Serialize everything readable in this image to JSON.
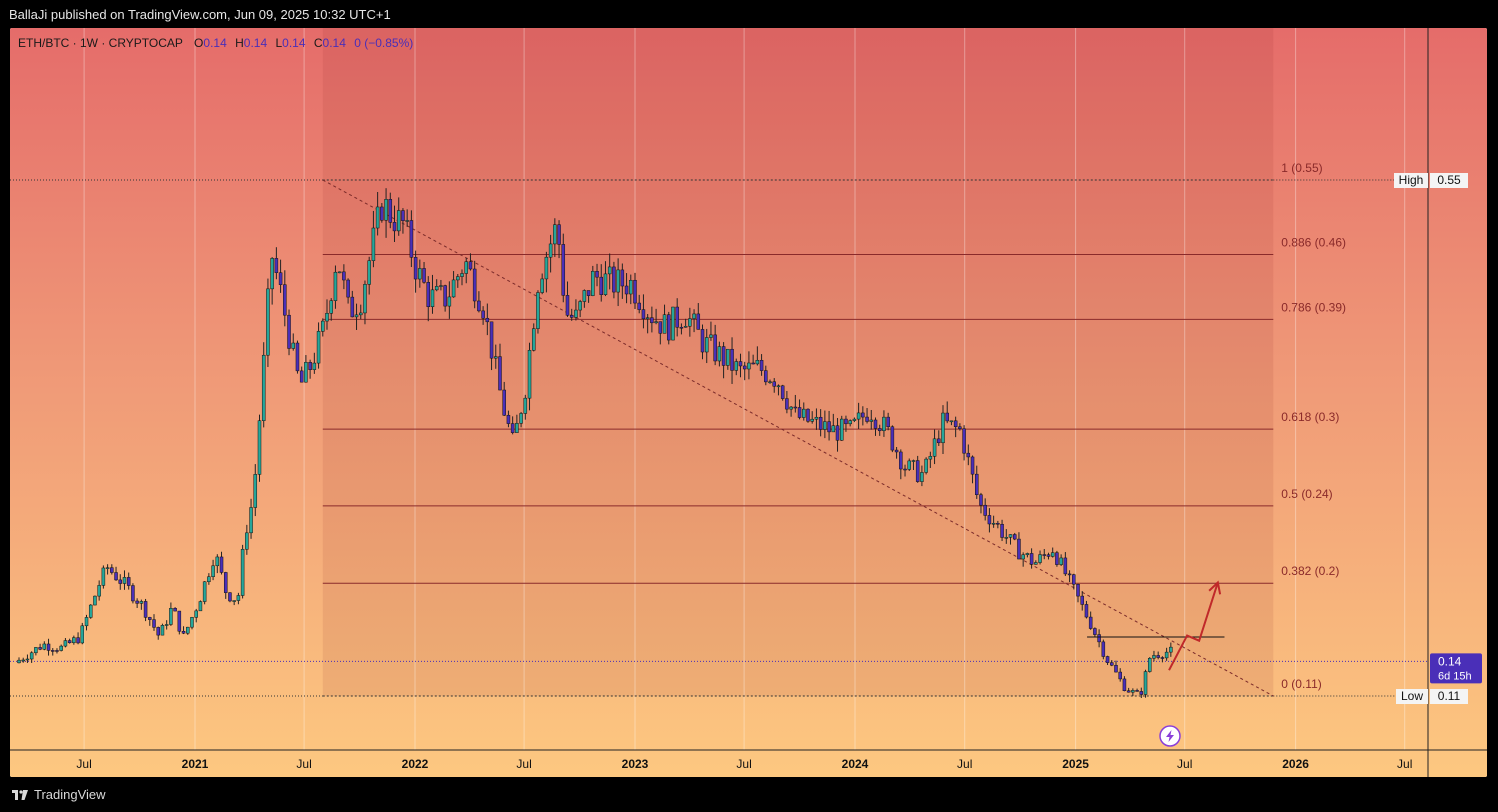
{
  "header": {
    "publish": "BallaJi published on TradingView.com, Jun 09, 2025 10:32 UTC+1"
  },
  "footer": {
    "brand": "TradingView"
  },
  "chart_data": {
    "type": "candlestick",
    "symbol": "ETH/BTC · 1W · CRYPTOCAP",
    "ohlc": {
      "o_label": "O",
      "o": "0.14",
      "h_label": "H",
      "h": "0.14",
      "l_label": "L",
      "l": "0.14",
      "c_label": "C",
      "c": "0.14",
      "change": "0 (−0.85%)"
    },
    "x_ticks": [
      {
        "label": "Jul",
        "date": "2020-07-01",
        "bold": false
      },
      {
        "label": "2021",
        "date": "2021-01-01",
        "bold": true
      },
      {
        "label": "Jul",
        "date": "2021-07-01",
        "bold": false
      },
      {
        "label": "2022",
        "date": "2022-01-01",
        "bold": true
      },
      {
        "label": "Jul",
        "date": "2022-07-01",
        "bold": false
      },
      {
        "label": "2023",
        "date": "2023-01-01",
        "bold": true
      },
      {
        "label": "Jul",
        "date": "2023-07-01",
        "bold": false
      },
      {
        "label": "2024",
        "date": "2024-01-01",
        "bold": true
      },
      {
        "label": "Jul",
        "date": "2024-07-01",
        "bold": false
      },
      {
        "label": "2025",
        "date": "2025-01-01",
        "bold": true
      },
      {
        "label": "Jul",
        "date": "2025-07-01",
        "bold": false
      },
      {
        "label": "2026",
        "date": "2026-01-01",
        "bold": true
      },
      {
        "label": "Jul",
        "date": "2026-07-01",
        "bold": false
      }
    ],
    "series": [
      {
        "date": "2020-03-15",
        "value": 0.0225
      },
      {
        "date": "2020-05-01",
        "value": 0.025
      },
      {
        "date": "2020-06-01",
        "value": 0.0245
      },
      {
        "date": "2020-07-01",
        "value": 0.026
      },
      {
        "date": "2020-08-01",
        "value": 0.033
      },
      {
        "date": "2020-08-15",
        "value": 0.0355
      },
      {
        "date": "2020-09-15",
        "value": 0.033
      },
      {
        "date": "2020-10-15",
        "value": 0.03
      },
      {
        "date": "2020-11-10",
        "value": 0.026
      },
      {
        "date": "2020-12-01",
        "value": 0.03
      },
      {
        "date": "2020-12-20",
        "value": 0.026
      },
      {
        "date": "2021-01-15",
        "value": 0.031
      },
      {
        "date": "2021-02-10",
        "value": 0.0375
      },
      {
        "date": "2021-03-01",
        "value": 0.032
      },
      {
        "date": "2021-03-20",
        "value": 0.031
      },
      {
        "date": "2021-04-01",
        "value": 0.04
      },
      {
        "date": "2021-04-15",
        "value": 0.045
      },
      {
        "date": "2021-05-01",
        "value": 0.062
      },
      {
        "date": "2021-05-15",
        "value": 0.078
      },
      {
        "date": "2021-06-01",
        "value": 0.072
      },
      {
        "date": "2021-06-20",
        "value": 0.064
      },
      {
        "date": "2021-07-01",
        "value": 0.06
      },
      {
        "date": "2021-07-20",
        "value": 0.063
      },
      {
        "date": "2021-08-10",
        "value": 0.068
      },
      {
        "date": "2021-09-01",
        "value": 0.078
      },
      {
        "date": "2021-09-20",
        "value": 0.07
      },
      {
        "date": "2021-10-10",
        "value": 0.072
      },
      {
        "date": "2021-11-01",
        "value": 0.08
      },
      {
        "date": "2021-11-15",
        "value": 0.085
      },
      {
        "date": "2021-12-01",
        "value": 0.083
      },
      {
        "date": "2021-12-20",
        "value": 0.082
      },
      {
        "date": "2022-01-10",
        "value": 0.076
      },
      {
        "date": "2022-02-01",
        "value": 0.072
      },
      {
        "date": "2022-03-01",
        "value": 0.072
      },
      {
        "date": "2022-04-01",
        "value": 0.077
      },
      {
        "date": "2022-05-01",
        "value": 0.071
      },
      {
        "date": "2022-06-01",
        "value": 0.058
      },
      {
        "date": "2022-06-20",
        "value": 0.052
      },
      {
        "date": "2022-07-10",
        "value": 0.06
      },
      {
        "date": "2022-08-01",
        "value": 0.075
      },
      {
        "date": "2022-09-01",
        "value": 0.082
      },
      {
        "date": "2022-09-15",
        "value": 0.07
      },
      {
        "date": "2022-10-01",
        "value": 0.069
      },
      {
        "date": "2022-11-01",
        "value": 0.075
      },
      {
        "date": "2022-12-01",
        "value": 0.074
      },
      {
        "date": "2023-01-01",
        "value": 0.074
      },
      {
        "date": "2023-02-01",
        "value": 0.07
      },
      {
        "date": "2023-03-01",
        "value": 0.068
      },
      {
        "date": "2023-04-01",
        "value": 0.07
      },
      {
        "date": "2023-05-01",
        "value": 0.066
      },
      {
        "date": "2023-06-01",
        "value": 0.064
      },
      {
        "date": "2023-07-01",
        "value": 0.062
      },
      {
        "date": "2023-08-01",
        "value": 0.0625
      },
      {
        "date": "2023-09-01",
        "value": 0.061
      },
      {
        "date": "2023-10-01",
        "value": 0.056
      },
      {
        "date": "2023-11-01",
        "value": 0.055
      },
      {
        "date": "2023-12-01",
        "value": 0.054
      },
      {
        "date": "2024-01-01",
        "value": 0.054
      },
      {
        "date": "2024-02-01",
        "value": 0.057
      },
      {
        "date": "2024-03-01",
        "value": 0.054
      },
      {
        "date": "2024-04-01",
        "value": 0.049
      },
      {
        "date": "2024-05-01",
        "value": 0.048
      },
      {
        "date": "2024-06-01",
        "value": 0.055
      },
      {
        "date": "2024-07-01",
        "value": 0.054
      },
      {
        "date": "2024-08-01",
        "value": 0.044
      },
      {
        "date": "2024-09-01",
        "value": 0.041
      },
      {
        "date": "2024-10-01",
        "value": 0.038
      },
      {
        "date": "2024-11-01",
        "value": 0.036
      },
      {
        "date": "2024-12-01",
        "value": 0.038
      },
      {
        "date": "2025-01-01",
        "value": 0.033
      },
      {
        "date": "2025-02-01",
        "value": 0.028
      },
      {
        "date": "2025-03-01",
        "value": 0.023
      },
      {
        "date": "2025-04-01",
        "value": 0.019
      },
      {
        "date": "2025-04-25",
        "value": 0.018
      },
      {
        "date": "2025-05-12",
        "value": 0.0235
      },
      {
        "date": "2025-06-09",
        "value": 0.024
      }
    ],
    "fib": {
      "start_date": "2021-08-01",
      "end_date": "2025-11-25",
      "levels": [
        {
          "ratio": "1",
          "label": "1 (0.55)",
          "price": 0.088
        },
        {
          "ratio": "0.886",
          "label": "0.886 (0.46)",
          "price": 0.0779
        },
        {
          "ratio": "0.786",
          "label": "0.786 (0.39)",
          "price": 0.0691
        },
        {
          "ratio": "0.618",
          "label": "0.618 (0.3)",
          "price": 0.0542
        },
        {
          "ratio": "0.5",
          "label": "0.5 (0.24)",
          "price": 0.0438
        },
        {
          "ratio": "0.382",
          "label": "0.382 (0.2)",
          "price": 0.0333
        },
        {
          "ratio": "0",
          "label": "0 (0.11)",
          "price": 0.018
        }
      ]
    },
    "trendline": {
      "from": {
        "date": "2021-08-01",
        "price": 0.088
      },
      "to": {
        "date": "2025-11-25",
        "price": 0.018
      }
    },
    "resistance": {
      "from": {
        "date": "2025-01-20",
        "price": 0.026
      },
      "to": {
        "date": "2025-09-05",
        "price": 0.026
      }
    },
    "projection": [
      {
        "date": "2025-06-05",
        "price": 0.0215
      },
      {
        "date": "2025-07-05",
        "price": 0.0262
      },
      {
        "date": "2025-07-25",
        "price": 0.0255
      },
      {
        "date": "2025-08-25",
        "price": 0.0334
      }
    ],
    "last_price": {
      "value": "0.14",
      "countdown": "6d 15h",
      "price": 0.0227
    },
    "high_label": {
      "text": "High",
      "value": "0.55",
      "price": 0.088
    },
    "low_label": {
      "text": "Low",
      "value": "0.11",
      "price": 0.018
    },
    "colors": {
      "up": "#26a69a",
      "down": "#4a2fb8",
      "fib_line": "#8a2a2a",
      "price_bg": "#4a2fb8",
      "projection": "#c0292a"
    }
  }
}
